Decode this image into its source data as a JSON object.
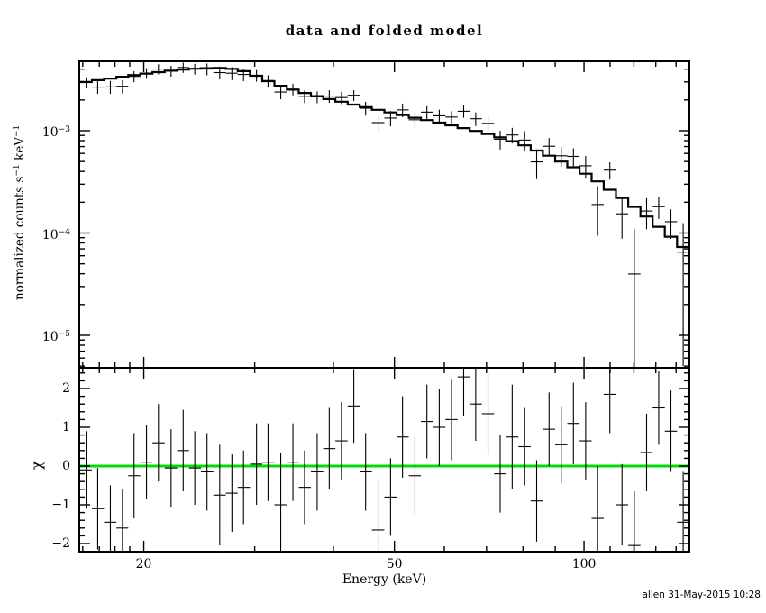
{
  "title": "data and folded model",
  "footer": "allen 31-May-2015 10:28",
  "colors": {
    "foreground": "#000000",
    "background": "#ffffff",
    "zero_line": "#00dd00"
  },
  "axes": {
    "x": {
      "label": "Energy (keV)",
      "ticks": [
        {
          "v": 20,
          "label": "20"
        },
        {
          "v": 50,
          "label": "50"
        },
        {
          "v": 100,
          "label": "100"
        }
      ],
      "minor": [
        16,
        17,
        18,
        19,
        30,
        40,
        60,
        70,
        80,
        90,
        110,
        120,
        130,
        140
      ]
    },
    "y_top": {
      "label_main": "normalized counts s",
      "sup1": "−1",
      "label_unit": " keV",
      "sup2": "−1",
      "ticks": [
        {
          "v": 0.001,
          "base": "10",
          "exp": "−3"
        },
        {
          "v": 0.0001,
          "base": "10",
          "exp": "−4"
        },
        {
          "v": 1e-05,
          "base": "10",
          "exp": "−5"
        }
      ]
    },
    "y_bot": {
      "label": "χ",
      "ticks": [
        {
          "v": 2,
          "label": "2"
        },
        {
          "v": 1,
          "label": "1"
        },
        {
          "v": 0,
          "label": "0"
        },
        {
          "v": -1,
          "label": "−1"
        },
        {
          "v": -2,
          "label": "−2"
        }
      ],
      "minor_step": 0.2
    }
  },
  "chart_data": {
    "type": "scatter",
    "title": "data and folded model",
    "xlabel": "Energy (keV)",
    "ylabel_top": "normalized counts s-1 keV-1",
    "ylabel_bottom": "chi",
    "x_scale": "log",
    "y_top_scale": "log",
    "x_range": [
      15.8,
      147
    ],
    "y_range_top": [
      4.8e-06,
      0.0048
    ],
    "y_range_bottom": [
      -2.2,
      2.55
    ],
    "legend": "none",
    "series_description": "Top panel: observed count spectrum (crosses with bin-width and error bars) with folded model (stepped histogram). Bottom panel: fit residuals in sigma (chi) with green zero line.",
    "energy_kev": [
      16.2,
      16.9,
      17.7,
      18.5,
      19.3,
      20.2,
      21.1,
      22.1,
      23.1,
      24.1,
      25.2,
      26.4,
      27.6,
      28.8,
      30.2,
      31.5,
      33.0,
      34.5,
      36.0,
      37.7,
      39.4,
      41.2,
      43.1,
      45.0,
      47.1,
      49.3,
      51.5,
      53.9,
      56.3,
      58.9,
      61.6,
      64.4,
      67.3,
      70.4,
      73.6,
      76.9,
      80.5,
      84.1,
      88.0,
      92.0,
      96.2,
      100.6,
      105.1,
      109.9,
      114.9,
      120.2,
      125.7,
      131.4,
      137.4,
      143.7
    ],
    "rate": [
      0.00296,
      0.00267,
      0.00268,
      0.00272,
      0.0034,
      0.00366,
      0.00401,
      0.00384,
      0.00415,
      0.00402,
      0.00401,
      0.0037,
      0.00365,
      0.00355,
      0.00347,
      0.00309,
      0.00239,
      0.00255,
      0.00217,
      0.00214,
      0.00218,
      0.00211,
      0.00222,
      0.00166,
      0.0012,
      0.00133,
      0.0016,
      0.00128,
      0.00152,
      0.0014,
      0.00136,
      0.00155,
      0.00131,
      0.00118,
      0.000826,
      0.000909,
      0.00081,
      0.000496,
      0.000705,
      0.000569,
      0.000561,
      0.000454,
      0.00019,
      0.000412,
      0.000154,
      3.98e-05,
      0.000164,
      0.000181,
      0.000129,
      6.5e-05
    ],
    "rate_err": [
      0.00036,
      0.000374,
      0.000389,
      0.000404,
      0.00042,
      0.000434,
      0.000449,
      0.000463,
      0.000475,
      0.000485,
      0.000532,
      0.000533,
      0.000523,
      0.000497,
      0.000449,
      0.000397,
      0.000358,
      0.000328,
      0.000304,
      0.000283,
      0.000306,
      0.000288,
      0.00027,
      0.000255,
      0.00024,
      0.000227,
      0.000241,
      0.000228,
      0.000216,
      0.000204,
      0.000192,
      0.000212,
      0.000199,
      0.000186,
      0.000172,
      0.000158,
      0.00018,
      0.00016,
      0.000143,
      0.000125,
      0.00011,
      0.000114,
      9.6e-05,
      7.95e-05,
      6.6e-05,
      6.84e-05,
      5.51e-05,
      4.37e-05,
      4.14e-05,
      6e-05
    ],
    "model": [
      0.003,
      0.00312,
      0.00324,
      0.00337,
      0.0035,
      0.00362,
      0.00374,
      0.00386,
      0.00396,
      0.00404,
      0.00409,
      0.0041,
      0.00402,
      0.00382,
      0.00345,
      0.00305,
      0.00275,
      0.00252,
      0.00234,
      0.00218,
      0.00204,
      0.00192,
      0.0018,
      0.0017,
      0.0016,
      0.00151,
      0.00142,
      0.00134,
      0.00127,
      0.0012,
      0.00113,
      0.00106,
      0.000995,
      0.00093,
      0.00086,
      0.00079,
      0.00072,
      0.00064,
      0.00057,
      0.0005,
      0.00044,
      0.00038,
      0.00032,
      0.000265,
      0.00022,
      0.00018,
      0.000145,
      0.000115,
      9.2e-05,
      7.3e-05
    ],
    "chi": [
      -0.1,
      -1.1,
      -1.45,
      -1.6,
      -0.25,
      0.1,
      0.6,
      -0.05,
      0.4,
      -0.05,
      -0.15,
      -0.75,
      -0.7,
      -0.55,
      0.05,
      0.1,
      -1.0,
      0.1,
      -0.55,
      -0.15,
      0.45,
      0.65,
      1.55,
      -0.15,
      -1.65,
      -0.8,
      0.75,
      -0.25,
      1.15,
      1.0,
      1.2,
      2.3,
      1.6,
      1.35,
      -0.2,
      0.75,
      0.5,
      -0.9,
      0.95,
      0.55,
      1.1,
      0.65,
      -1.35,
      1.85,
      -1.0,
      -2.05,
      0.35,
      1.5,
      0.9,
      -1.45
    ],
    "chi_err": [
      1.0,
      1.05,
      0.95,
      1.0,
      1.1,
      0.95,
      1.0,
      1.0,
      1.05,
      0.95,
      1.0,
      1.3,
      1.0,
      0.95,
      1.05,
      1.0,
      1.35,
      1.0,
      0.95,
      1.0,
      1.05,
      1.0,
      0.95,
      1.0,
      1.35,
      1.0,
      1.05,
      1.0,
      0.95,
      1.0,
      1.05,
      1.0,
      0.95,
      1.05,
      1.0,
      1.35,
      1.0,
      1.05,
      0.95,
      1.0,
      1.05,
      1.0,
      1.35,
      1.0,
      1.05,
      1.4,
      1.0,
      0.95,
      1.05,
      1.3
    ]
  }
}
